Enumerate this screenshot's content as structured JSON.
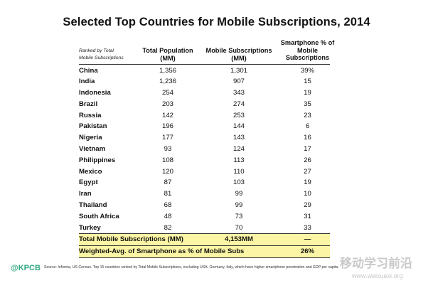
{
  "title": "Selected Top Countries for Mobile Subscriptions, 2014",
  "header": {
    "rank_note_line1": "Ranked by Total",
    "rank_note_line2": "Mobile Subscriptions",
    "col1_line1": "Total Population",
    "col1_line2": "(MM)",
    "col2_line1": "Mobile Subscriptions",
    "col2_line2": "(MM)",
    "col3_line1": "Smartphone % of",
    "col3_line2": "Mobile",
    "col3_line3": "Subscriptions"
  },
  "rows": [
    {
      "country": "China",
      "population": "1,356",
      "subscriptions": "1,301",
      "smartphone": "39%"
    },
    {
      "country": "India",
      "population": "1,236",
      "subscriptions": "907",
      "smartphone": "15"
    },
    {
      "country": "Indonesia",
      "population": "254",
      "subscriptions": "343",
      "smartphone": "19"
    },
    {
      "country": "Brazil",
      "population": "203",
      "subscriptions": "274",
      "smartphone": "35"
    },
    {
      "country": "Russia",
      "population": "142",
      "subscriptions": "253",
      "smartphone": "23"
    },
    {
      "country": "Pakistan",
      "population": "196",
      "subscriptions": "144",
      "smartphone": "6"
    },
    {
      "country": "Nigeria",
      "population": "177",
      "subscriptions": "143",
      "smartphone": "16"
    },
    {
      "country": "Vietnam",
      "population": "93",
      "subscriptions": "124",
      "smartphone": "17"
    },
    {
      "country": "Philippines",
      "population": "108",
      "subscriptions": "113",
      "smartphone": "26"
    },
    {
      "country": "Mexico",
      "population": "120",
      "subscriptions": "110",
      "smartphone": "27"
    },
    {
      "country": "Egypt",
      "population": "87",
      "subscriptions": "103",
      "smartphone": "19"
    },
    {
      "country": "Iran",
      "population": "81",
      "subscriptions": "99",
      "smartphone": "10"
    },
    {
      "country": "Thailand",
      "population": "68",
      "subscriptions": "99",
      "smartphone": "29"
    },
    {
      "country": "South Africa",
      "population": "48",
      "subscriptions": "73",
      "smartphone": "31"
    },
    {
      "country": "Turkey",
      "population": "82",
      "subscriptions": "70",
      "smartphone": "33"
    }
  ],
  "summary": [
    {
      "label": "Total Mobile Subscriptions (MM)",
      "subscriptions": "4,153MM",
      "smartphone": "—"
    },
    {
      "label": "Weighted-Avg. of Smartphone as % of Mobile Subs",
      "subscriptions": "",
      "smartphone": "26%"
    }
  ],
  "footer": {
    "logo": "@KPCB",
    "source": "Source: Informa, US Census. Top 15 countries ranked by Total Mobile Subscriptions, excluding USA, Germany, Italy, which have higher smartphone penetration and GDP per capita."
  },
  "watermark": {
    "line1": "移动学习前沿",
    "line2": "www.weixuexi.org"
  }
}
